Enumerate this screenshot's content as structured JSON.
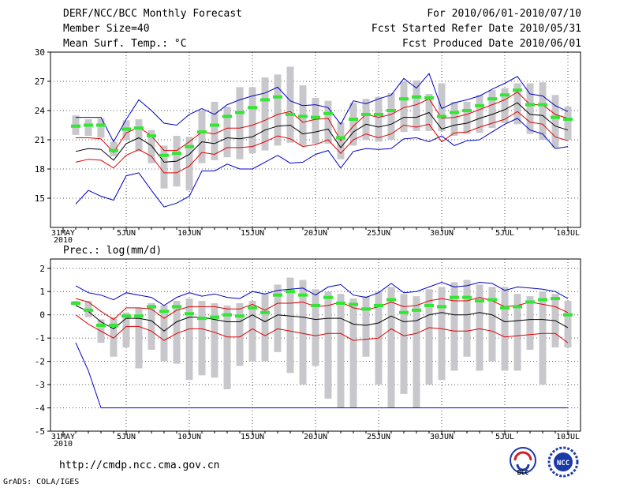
{
  "header": {
    "title": "DERF/NCC/BCC Monthly Forecast",
    "member_size": "Member Size=40",
    "variable": "Mean Surf. Temp.: °C",
    "period": "For 2010/06/01-2010/07/10",
    "started": "Fcst Started Refer Date 2010/05/31",
    "produced": "Fcst Produced Date 2010/06/01"
  },
  "footer": {
    "url": "http://cmdp.ncc.cma.gov.cn",
    "grads": "GrADS: COLA/IGES",
    "logo1": "BCC",
    "logo2": "NCC"
  },
  "colors": {
    "box": "#c8c8cc",
    "mean": "#000000",
    "inner": "#e00000",
    "outer": "#0000c8",
    "green": "#33e633"
  },
  "chart_data": [
    {
      "type": "box-ensemble",
      "title": "Mean Surf. Temp.: °C",
      "ylim": [
        12,
        30
      ],
      "yticks": [
        15,
        18,
        21,
        24,
        27,
        30
      ],
      "x_label_year": "2010",
      "x_tick_labels": [
        {
          "day": 0,
          "label": "31MAY"
        },
        {
          "day": 5,
          "label": "5JUN"
        },
        {
          "day": 10,
          "label": "10JUN"
        },
        {
          "day": 15,
          "label": "15JUN"
        },
        {
          "day": 20,
          "label": "20JUN"
        },
        {
          "day": 25,
          "label": "25JUN"
        },
        {
          "day": 30,
          "label": "30JUN"
        },
        {
          "day": 35,
          "label": "5JUL"
        },
        {
          "day": 40,
          "label": "10JUL"
        }
      ],
      "days": [
        1,
        2,
        3,
        4,
        5,
        6,
        7,
        8,
        9,
        10,
        11,
        12,
        13,
        14,
        15,
        16,
        17,
        18,
        19,
        20,
        21,
        22,
        23,
        24,
        25,
        26,
        27,
        28,
        29,
        30,
        31,
        32,
        33,
        34,
        35,
        36,
        37,
        38,
        39,
        40
      ],
      "box_low": [
        21.5,
        21.4,
        21.2,
        19.3,
        21.0,
        19.8,
        18.6,
        16.0,
        16.2,
        15.8,
        18.6,
        18.9,
        19.2,
        19.0,
        19.6,
        19.9,
        20.4,
        20.7,
        20.4,
        20.6,
        20.6,
        19.0,
        20.4,
        21.0,
        20.8,
        21.0,
        21.8,
        21.9,
        21.9,
        21.9,
        21.4,
        21.6,
        21.7,
        22.2,
        22.7,
        22.6,
        21.6,
        21.0,
        20.2,
        21.0
      ],
      "box_high": [
        23.5,
        23.1,
        23.2,
        20.8,
        23.0,
        23.1,
        22.0,
        20.4,
        21.4,
        21.3,
        24.0,
        24.9,
        24.4,
        26.4,
        26.4,
        27.4,
        27.7,
        28.5,
        26.6,
        25.3,
        25.0,
        22.8,
        24.8,
        25.2,
        25.4,
        25.8,
        27.0,
        27.1,
        25.7,
        26.8,
        24.9,
        24.9,
        25.6,
        26.1,
        26.3,
        26.8,
        26.8,
        26.9,
        25.6,
        24.4
      ],
      "outer_high": [
        23.3,
        23.3,
        23.3,
        20.8,
        23.1,
        25.1,
        24.0,
        22.7,
        22.5,
        23.6,
        24.2,
        23.6,
        24.6,
        25.1,
        25.5,
        25.8,
        26.4,
        25.0,
        24.5,
        24.6,
        24.3,
        22.6,
        25.0,
        24.7,
        25.2,
        25.6,
        27.3,
        26.3,
        27.8,
        24.2,
        24.8,
        25.1,
        25.5,
        26.2,
        26.8,
        27.5,
        25.7,
        25.5,
        24.5,
        23.9
      ],
      "outer_low": [
        14.4,
        15.8,
        15.2,
        14.8,
        17.3,
        17.6,
        15.8,
        14.1,
        14.5,
        15.2,
        17.8,
        17.8,
        18.5,
        18.0,
        18.0,
        18.7,
        19.4,
        18.6,
        18.7,
        19.5,
        19.9,
        18.1,
        19.8,
        20.1,
        20.0,
        20.1,
        21.1,
        21.2,
        20.8,
        21.4,
        20.4,
        20.9,
        21.0,
        21.8,
        22.6,
        23.2,
        22.0,
        21.6,
        20.1,
        20.3
      ],
      "inner_high": [
        21.2,
        21.2,
        21.1,
        19.7,
        21.7,
        22.3,
        21.4,
        19.9,
        19.9,
        20.8,
        21.8,
        21.6,
        22.2,
        22.2,
        22.5,
        23.0,
        23.6,
        23.9,
        22.8,
        23.1,
        23.2,
        20.9,
        22.4,
        23.6,
        23.3,
        23.6,
        24.3,
        24.6,
        25.2,
        23.2,
        23.3,
        23.6,
        24.1,
        24.6,
        25.1,
        25.9,
        24.6,
        24.6,
        23.6,
        23.2
      ],
      "inner_low": [
        18.7,
        19.0,
        18.9,
        18.1,
        19.4,
        20.0,
        19.3,
        17.6,
        17.6,
        18.3,
        19.7,
        19.5,
        20.2,
        20.2,
        20.3,
        20.8,
        21.4,
        21.1,
        20.3,
        20.5,
        21.0,
        19.6,
        21.0,
        21.6,
        21.2,
        21.6,
        22.5,
        22.3,
        22.6,
        20.8,
        21.7,
        21.8,
        22.3,
        22.7,
        23.1,
        23.9,
        22.8,
        22.6,
        21.3,
        20.9
      ],
      "mean": [
        19.8,
        20.1,
        20.0,
        18.9,
        20.6,
        21.2,
        20.4,
        18.7,
        18.8,
        19.5,
        20.8,
        20.6,
        21.2,
        21.1,
        21.3,
        22.0,
        22.4,
        22.5,
        21.6,
        21.8,
        22.1,
        20.2,
        21.8,
        22.6,
        22.3,
        22.6,
        23.3,
        23.3,
        23.8,
        22.1,
        22.5,
        22.7,
        23.2,
        23.6,
        24.1,
        24.8,
        23.6,
        23.5,
        22.4,
        22.0
      ],
      "median": [
        22.4,
        22.5,
        22.5,
        19.9,
        22.1,
        22.2,
        21.4,
        19.4,
        19.6,
        20.3,
        21.8,
        22.5,
        23.4,
        23.8,
        24.3,
        25.1,
        25.4,
        23.6,
        23.4,
        23.3,
        23.7,
        21.2,
        23.1,
        23.6,
        23.6,
        24.0,
        25.2,
        25.4,
        25.3,
        23.4,
        23.8,
        24.0,
        24.5,
        25.2,
        25.6,
        26.1,
        24.6,
        24.6,
        23.3,
        23.1
      ]
    },
    {
      "type": "box-ensemble",
      "title": "Prec.: log(mm/d)",
      "ylim": [
        -5,
        2.4
      ],
      "yticks": [
        -5,
        -4,
        -3,
        -2,
        -1,
        0,
        1,
        2
      ],
      "x_label_year": "2010",
      "x_tick_labels": [
        {
          "day": 0,
          "label": "31MAY"
        },
        {
          "day": 5,
          "label": "5JUN"
        },
        {
          "day": 10,
          "label": "10JUN"
        },
        {
          "day": 15,
          "label": "15JUN"
        },
        {
          "day": 20,
          "label": "20JUN"
        },
        {
          "day": 25,
          "label": "25JUN"
        },
        {
          "day": 30,
          "label": "30JUN"
        },
        {
          "day": 35,
          "label": "5JUL"
        },
        {
          "day": 40,
          "label": "10JUL"
        }
      ],
      "days": [
        1,
        2,
        3,
        4,
        5,
        6,
        7,
        8,
        9,
        10,
        11,
        12,
        13,
        14,
        15,
        16,
        17,
        18,
        19,
        20,
        21,
        22,
        23,
        24,
        25,
        26,
        27,
        28,
        29,
        30,
        31,
        32,
        33,
        34,
        35,
        36,
        37,
        38,
        39,
        40
      ],
      "box_low": [
        0.4,
        -0.1,
        -1.2,
        -1.8,
        -1.4,
        -2.3,
        -1.5,
        -2.0,
        -2.1,
        -2.8,
        -2.6,
        -2.7,
        -3.2,
        -2.2,
        -2.0,
        -2.0,
        -1.6,
        -2.5,
        -3.0,
        -2.2,
        -3.6,
        -4.0,
        -4.0,
        -1.8,
        -3.0,
        -4.0,
        -3.4,
        -4.0,
        -3.0,
        -2.8,
        -2.4,
        -1.8,
        -2.4,
        -2.0,
        -2.4,
        -2.4,
        -1.5,
        -3.0,
        -1.4,
        -1.4
      ],
      "box_high": [
        0.6,
        0.6,
        -0.2,
        -0.1,
        0.1,
        0.3,
        0.5,
        0.4,
        0.6,
        0.7,
        0.6,
        0.5,
        0.4,
        0.5,
        0.6,
        0.9,
        1.3,
        1.6,
        1.5,
        1.1,
        1.0,
        0.9,
        0.7,
        0.8,
        1.0,
        1.2,
        0.9,
        0.8,
        1.1,
        1.2,
        1.4,
        1.5,
        1.3,
        1.2,
        1.2,
        0.9,
        0.8,
        1.0,
        0.9,
        0.6
      ],
      "outer_high": [
        1.25,
        0.95,
        0.85,
        0.65,
        0.95,
        0.85,
        0.75,
        0.4,
        0.75,
        0.95,
        0.8,
        0.9,
        0.75,
        0.7,
        1.0,
        0.9,
        1.05,
        1.1,
        1.15,
        0.85,
        1.2,
        1.3,
        0.85,
        0.75,
        0.95,
        1.35,
        0.95,
        1.0,
        1.2,
        1.4,
        1.2,
        1.25,
        1.4,
        1.35,
        1.05,
        1.2,
        1.15,
        1.1,
        1.0,
        0.7
      ],
      "outer_low": [
        -1.2,
        -2.4,
        -4.0,
        -4.0,
        -4.0,
        -4.0,
        -4.0,
        -4.0,
        -4.0,
        -4.0,
        -4.0,
        -4.0,
        -4.0,
        -4.0,
        -4.0,
        -4.0,
        -4.0,
        -4.0,
        -4.0,
        -4.0,
        -4.0,
        -4.0,
        -4.0,
        -4.0,
        -4.0,
        -4.0,
        -4.0,
        -4.0,
        -4.0,
        -4.0,
        -4.0,
        -4.0,
        -4.0,
        -4.0,
        -4.0,
        -4.0,
        -4.0,
        -4.0,
        -4.0,
        -4.0
      ],
      "inner_high": [
        0.7,
        0.55,
        0.15,
        -0.2,
        0.3,
        0.3,
        0.25,
        -0.15,
        0.2,
        0.35,
        0.35,
        0.35,
        0.25,
        0.25,
        0.45,
        0.2,
        0.5,
        0.5,
        0.55,
        0.35,
        0.4,
        0.55,
        0.3,
        0.2,
        0.35,
        0.55,
        0.35,
        0.4,
        0.6,
        0.7,
        0.6,
        0.6,
        0.75,
        0.6,
        0.35,
        0.4,
        0.55,
        0.45,
        0.35,
        0.1
      ],
      "inner_low": [
        0.0,
        -0.4,
        -0.7,
        -1.0,
        -0.5,
        -0.5,
        -0.7,
        -1.1,
        -0.8,
        -0.6,
        -0.6,
        -0.75,
        -0.95,
        -0.95,
        -0.6,
        -0.9,
        -0.6,
        -0.7,
        -0.8,
        -0.9,
        -0.8,
        -0.8,
        -1.1,
        -1.05,
        -1.0,
        -0.6,
        -0.9,
        -0.8,
        -0.55,
        -0.6,
        -0.7,
        -0.7,
        -0.6,
        -0.7,
        -0.95,
        -0.9,
        -0.85,
        -0.8,
        -0.8,
        -1.2
      ],
      "mean": [
        0.4,
        0.15,
        -0.3,
        -0.6,
        -0.15,
        -0.15,
        -0.25,
        -0.7,
        -0.3,
        -0.1,
        -0.1,
        -0.2,
        -0.3,
        -0.3,
        0.0,
        -0.3,
        0.0,
        -0.05,
        -0.1,
        -0.2,
        -0.15,
        -0.15,
        -0.4,
        -0.45,
        -0.35,
        -0.05,
        -0.3,
        -0.25,
        0.0,
        0.1,
        0.0,
        0.0,
        0.1,
        0.0,
        -0.3,
        -0.25,
        -0.2,
        -0.2,
        -0.25,
        -0.55
      ],
      "median": [
        0.5,
        0.2,
        -0.45,
        -0.45,
        -0.05,
        -0.05,
        0.35,
        0.15,
        0.35,
        0.05,
        -0.15,
        -0.1,
        0.0,
        -0.05,
        0.3,
        0.1,
        0.85,
        1.0,
        0.85,
        0.4,
        0.75,
        0.5,
        0.45,
        0.25,
        0.4,
        0.65,
        0.1,
        0.2,
        0.4,
        0.35,
        0.75,
        0.75,
        0.6,
        0.65,
        0.3,
        0.35,
        0.55,
        0.65,
        0.7,
        0.0
      ]
    }
  ]
}
